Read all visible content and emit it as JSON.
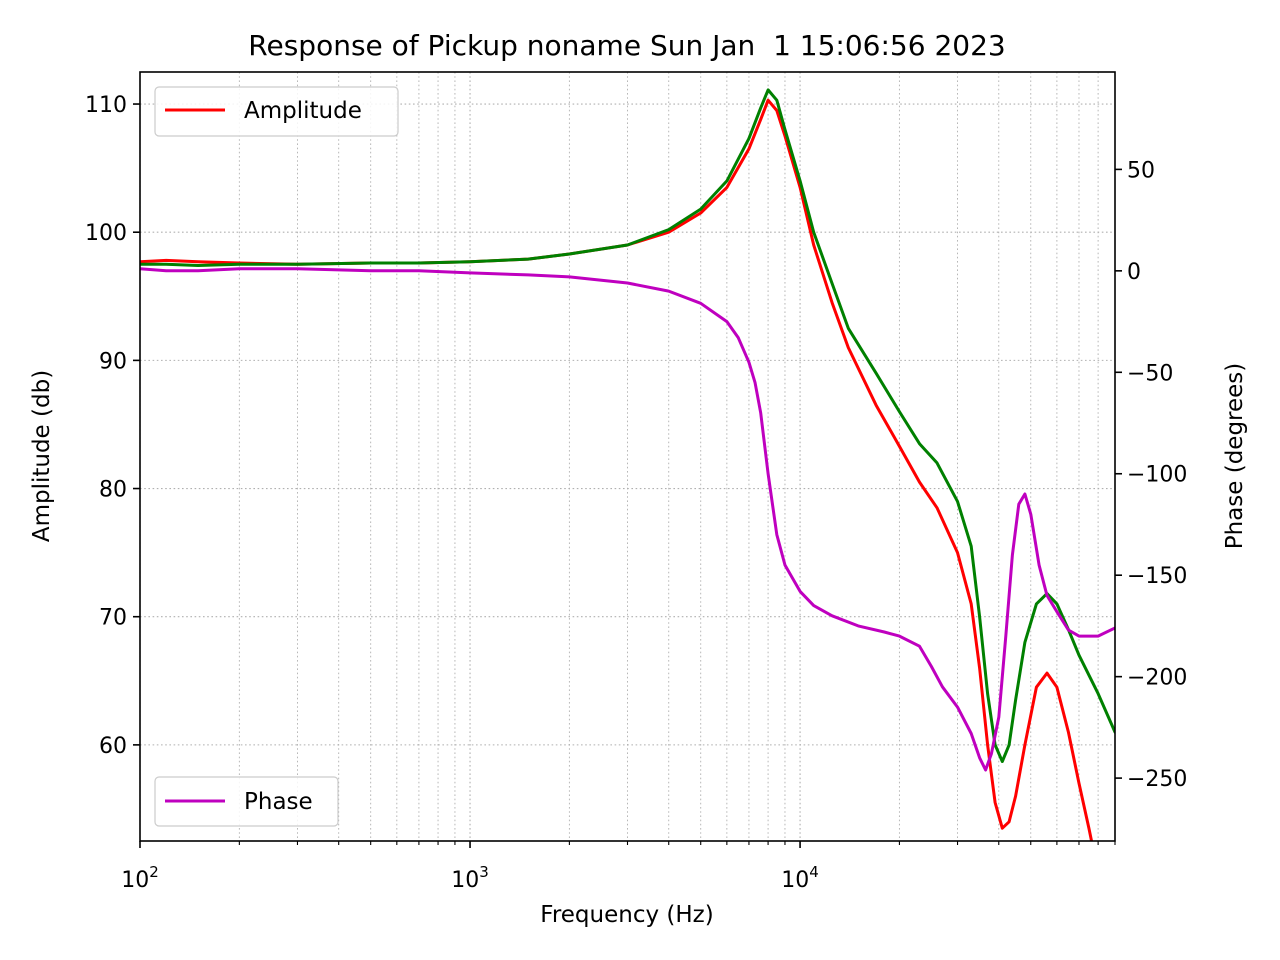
{
  "chart_data": {
    "type": "line",
    "title": "Response of Pickup noname Sun Jan  1 15:06:56 2023",
    "xlabel": "Frequency (Hz)",
    "ylabel": "Amplitude (db)",
    "y2label": "Phase (degrees)",
    "xscale": "log",
    "xlim": [
      100,
      90000
    ],
    "ylim": [
      52.5,
      112.5
    ],
    "y2lim": [
      -281,
      98
    ],
    "grid": true,
    "x_tick_labels": [
      {
        "base": "10",
        "exp": "2"
      },
      {
        "base": "10",
        "exp": "3"
      },
      {
        "base": "10",
        "exp": "4"
      }
    ],
    "y_ticks": [
      "60",
      "70",
      "80",
      "90",
      "100",
      "110"
    ],
    "y2_ticks": [
      "50",
      "0",
      "−50",
      "−100",
      "−150",
      "−200",
      "−250"
    ],
    "legends": [
      {
        "label": "Amplitude",
        "placement": "upper-left",
        "color": "#ff0000"
      },
      {
        "label": "Phase",
        "placement": "lower-left",
        "color": "#bf00bf"
      }
    ],
    "series": [
      {
        "name": "Amplitude",
        "axis": "left",
        "color": "#ff0000",
        "x": [
          100,
          120,
          150,
          200,
          300,
          500,
          700,
          1000,
          1500,
          2000,
          3000,
          4000,
          5000,
          6000,
          7000,
          7600,
          8000,
          8500,
          9000,
          10000,
          11000,
          12500,
          14000,
          17000,
          20000,
          23000,
          26000,
          30000,
          33000,
          35000,
          37000,
          39000,
          41000,
          43000,
          45000,
          48000,
          52000,
          56000,
          60000,
          65000,
          70000,
          75000,
          80000
        ],
        "y": [
          97.7,
          97.8,
          97.7,
          97.6,
          97.5,
          97.6,
          97.6,
          97.7,
          97.9,
          98.3,
          99.0,
          100.0,
          101.5,
          103.5,
          106.5,
          108.8,
          110.3,
          109.5,
          107.5,
          103.5,
          99.0,
          94.5,
          91.0,
          86.5,
          83.3,
          80.5,
          78.5,
          75.0,
          71.0,
          66.0,
          60.0,
          55.5,
          53.5,
          54.0,
          56.0,
          60.0,
          64.5,
          65.6,
          64.5,
          61.0,
          57.0,
          53.5,
          50.0
        ]
      },
      {
        "name": "",
        "axis": "left",
        "color": "#008000",
        "x": [
          100,
          120,
          150,
          200,
          300,
          500,
          700,
          1000,
          1500,
          2000,
          3000,
          4000,
          5000,
          6000,
          7000,
          7600,
          8000,
          8500,
          9000,
          10000,
          11000,
          12500,
          14000,
          17000,
          20000,
          23000,
          26000,
          30000,
          33000,
          35000,
          37000,
          39000,
          41000,
          43000,
          45000,
          48000,
          52000,
          56000,
          60000,
          65000,
          70000,
          80000,
          90000
        ],
        "y": [
          97.5,
          97.5,
          97.4,
          97.5,
          97.5,
          97.6,
          97.6,
          97.7,
          97.9,
          98.3,
          99.0,
          100.2,
          101.8,
          104.0,
          107.3,
          109.7,
          111.1,
          110.3,
          108.0,
          104.0,
          100.0,
          96.0,
          92.5,
          89.0,
          86.0,
          83.5,
          82.0,
          79.0,
          75.5,
          70.0,
          64.0,
          60.0,
          58.7,
          60.0,
          63.5,
          68.0,
          71.0,
          71.8,
          71.0,
          69.0,
          67.0,
          64.0,
          61.0
        ]
      },
      {
        "name": "Phase",
        "axis": "right",
        "color": "#bf00bf",
        "x": [
          100,
          120,
          150,
          200,
          300,
          500,
          700,
          1000,
          1500,
          2000,
          3000,
          4000,
          5000,
          6000,
          6500,
          7000,
          7300,
          7600,
          8000,
          8500,
          9000,
          10000,
          11000,
          12500,
          15000,
          18000,
          20000,
          23000,
          25000,
          27000,
          30000,
          33000,
          35000,
          36500,
          38000,
          40000,
          42000,
          44000,
          46000,
          48000,
          50000,
          53000,
          56000,
          60000,
          65000,
          70000,
          80000,
          90000
        ],
        "y": [
          1,
          0,
          0,
          1,
          1,
          0,
          0,
          -1,
          -2,
          -3,
          -6,
          -10,
          -16,
          -25,
          -33,
          -45,
          -55,
          -70,
          -100,
          -130,
          -145,
          -158,
          -165,
          -170,
          -175,
          -178,
          -180,
          -185,
          -195,
          -205,
          -215,
          -228,
          -240,
          -246,
          -238,
          -220,
          -180,
          -140,
          -115,
          -110,
          -120,
          -145,
          -160,
          -168,
          -177,
          -180,
          -180,
          -176
        ]
      }
    ]
  }
}
